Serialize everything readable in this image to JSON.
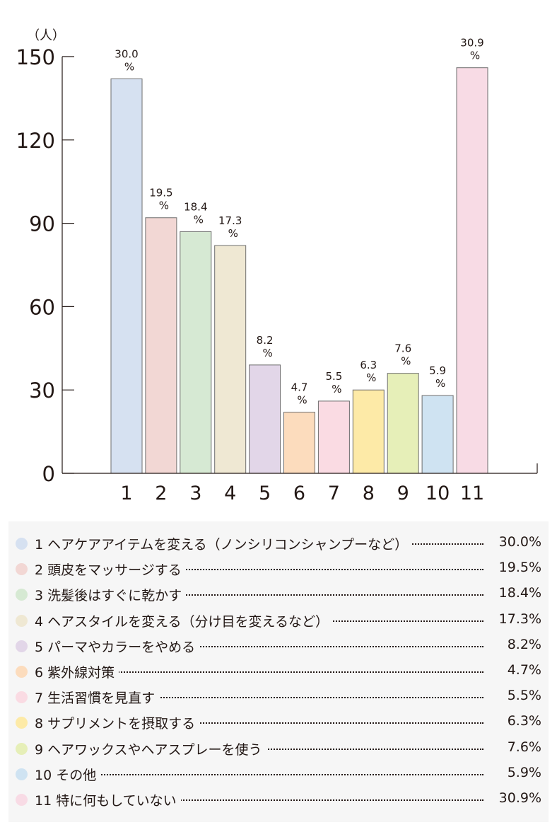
{
  "chart_data": {
    "type": "bar",
    "unit_label": "（人）",
    "y_ticks": [
      "150",
      "120",
      "90",
      "60",
      "30",
      "0"
    ],
    "ylim": [
      0,
      150
    ],
    "categories": [
      "1",
      "2",
      "3",
      "4",
      "5",
      "6",
      "7",
      "8",
      "9",
      "10",
      "11"
    ],
    "values": [
      142,
      92,
      87,
      82,
      39,
      22,
      26,
      30,
      36,
      28,
      146
    ],
    "labels": [
      "30.0",
      "19.5",
      "18.4",
      "17.3",
      "8.2",
      "4.7",
      "5.5",
      "6.3",
      "7.6",
      "5.9",
      "30.9"
    ],
    "percent_sign": "%",
    "colors": [
      "#d6e1f1",
      "#f2d7d4",
      "#d6e9d3",
      "#efe8d3",
      "#e2d6e8",
      "#fcdcbd",
      "#fadbe3",
      "#fdeaa7",
      "#e6efb8",
      "#cfe3f2",
      "#f8dbe5"
    ]
  },
  "legend": [
    {
      "text": "1 ヘアケアアイテムを変える（ノンシリコンシャンプーなど）",
      "pct": "30.0%"
    },
    {
      "text": "2 頭皮をマッサージする",
      "pct": "19.5%"
    },
    {
      "text": "3 洗髪後はすぐに乾かす",
      "pct": "18.4%"
    },
    {
      "text": "4 ヘアスタイルを変える（分け目を変えるなど）",
      "pct": "17.3%"
    },
    {
      "text": "5 パーマやカラーをやめる",
      "pct": "8.2%"
    },
    {
      "text": "6 紫外線対策",
      "pct": "4.7%"
    },
    {
      "text": "7 生活習慣を見直す",
      "pct": "5.5%"
    },
    {
      "text": "8 サプリメントを摂取する",
      "pct": "6.3%"
    },
    {
      "text": "9 ヘアワックスやヘアスプレーを使う",
      "pct": "7.6%"
    },
    {
      "text": "10 その他",
      "pct": "5.9%"
    },
    {
      "text": "11 特に何もしていない",
      "pct": "30.9%"
    }
  ]
}
